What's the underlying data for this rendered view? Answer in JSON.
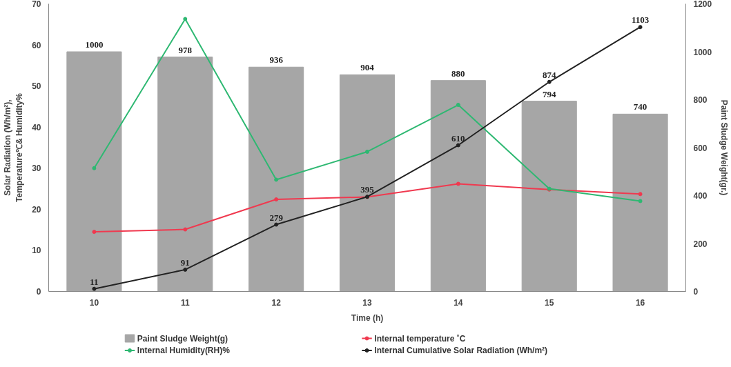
{
  "chart_data": {
    "type": "bar",
    "categories": [
      "10",
      "11",
      "12",
      "13",
      "14",
      "15",
      "16"
    ],
    "xlabel": "Time (h)",
    "ylabel": "Solar Radiation (Wh/m²),\nTemperature℃& Humidity%",
    "y2label": "Paint Sludge Weight(gr.)",
    "ylim": [
      0,
      70
    ],
    "yticks": [
      0,
      10,
      20,
      30,
      40,
      50,
      60,
      70
    ],
    "y2lim": [
      0,
      1200
    ],
    "y2ticks": [
      0,
      200,
      400,
      600,
      800,
      1000,
      1200
    ],
    "grid": false,
    "legend": "bottom",
    "marker": "circle",
    "line_style": "solid",
    "series": [
      {
        "name": "Paint Sludge  Weight(g)",
        "axis": "y2",
        "color": "#a6a6a6",
        "data_labels": true,
        "values": [
          1000,
          978,
          936,
          904,
          880,
          794,
          740
        ]
      },
      {
        "name": "Internal temperature ˚C",
        "type": "line",
        "color": "#f0394f",
        "values": [
          14.5,
          15.1,
          22.4,
          23,
          26.2,
          24.8,
          23.7
        ]
      },
      {
        "name": "Internal Humidity(RH)%",
        "type": "line",
        "color": "#2eb872",
        "values": [
          30,
          66.3,
          27.2,
          34,
          45.4,
          25,
          22
        ]
      },
      {
        "name": "Internal Cumulative Solar Radiation (Wh/m²)",
        "type": "line",
        "axis": "y2",
        "color": "#222222",
        "data_labels": true,
        "values": [
          11,
          91,
          279,
          395,
          610,
          874,
          1103
        ]
      }
    ]
  }
}
